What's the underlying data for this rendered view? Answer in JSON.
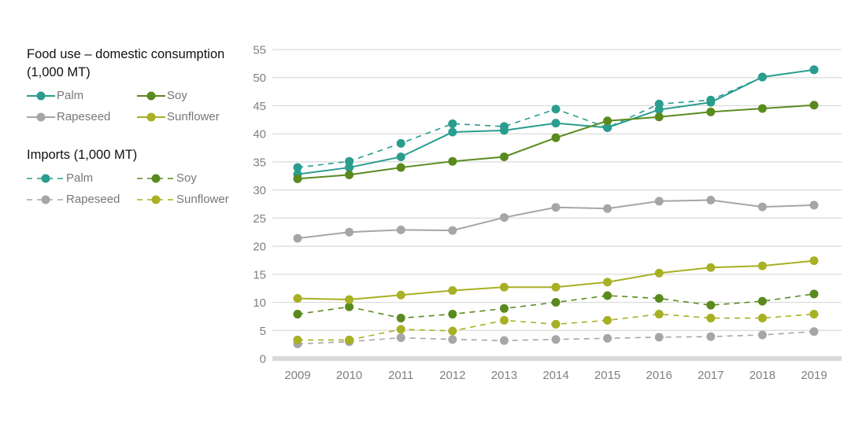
{
  "legend": {
    "food_title": "Food use – domestic consumption (1,000 MT)",
    "imports_title": "Imports (1,000 MT)",
    "entries": {
      "palm": "Palm",
      "soy": "Soy",
      "rapeseed": "Rapeseed",
      "sunflower": "Sunflower"
    }
  },
  "colors": {
    "palm": "#2a9d8f",
    "soy": "#5a8a1e",
    "rapeseed": "#a6a6a6",
    "sunflower": "#a8b023",
    "grid": "#d9d9d9",
    "axis": "#d9d9d9",
    "tick_text": "#808080"
  },
  "chart_data": {
    "type": "line",
    "x": [
      "2009",
      "2010",
      "2011",
      "2012",
      "2013",
      "2014",
      "2015",
      "2016",
      "2017",
      "2018",
      "2019"
    ],
    "ylim": [
      0,
      55
    ],
    "yticks": [
      0,
      5,
      10,
      15,
      20,
      25,
      30,
      35,
      40,
      45,
      50,
      55
    ],
    "grid": true,
    "legend_position": "left",
    "series": [
      {
        "name": "Palm",
        "group": "Food use – domestic consumption (1,000 MT)",
        "key": "palm",
        "dashed": false,
        "values": [
          32.8,
          34.0,
          35.9,
          40.3,
          40.6,
          41.9,
          41.1,
          44.3,
          45.6,
          50.1,
          51.4
        ]
      },
      {
        "name": "Soy",
        "group": "Food use – domestic consumption (1,000 MT)",
        "key": "soy",
        "dashed": false,
        "values": [
          32.0,
          32.7,
          34.0,
          35.1,
          35.9,
          39.3,
          42.3,
          43.0,
          43.9,
          44.5,
          45.1
        ]
      },
      {
        "name": "Rapeseed",
        "group": "Food use – domestic consumption (1,000 MT)",
        "key": "rapeseed",
        "dashed": false,
        "values": [
          21.4,
          22.5,
          22.9,
          22.8,
          25.1,
          26.9,
          26.7,
          28.0,
          28.2,
          27.0,
          27.3
        ]
      },
      {
        "name": "Sunflower",
        "group": "Food use – domestic consumption (1,000 MT)",
        "key": "sunflower",
        "dashed": false,
        "values": [
          10.7,
          10.5,
          11.3,
          12.1,
          12.7,
          12.7,
          13.6,
          15.2,
          16.2,
          16.5,
          17.4
        ]
      },
      {
        "name": "Palm",
        "group": "Imports (1,000 MT)",
        "key": "palm",
        "dashed": true,
        "values": [
          34.0,
          35.1,
          38.3,
          41.8,
          41.3,
          44.4,
          41.1,
          45.3,
          46.0,
          50.1,
          51.4
        ]
      },
      {
        "name": "Soy",
        "group": "Imports (1,000 MT)",
        "key": "soy",
        "dashed": true,
        "values": [
          7.9,
          9.2,
          7.2,
          7.9,
          8.9,
          10.0,
          11.2,
          10.7,
          9.5,
          10.2,
          11.5
        ]
      },
      {
        "name": "Rapeseed",
        "group": "Imports (1,000 MT)",
        "key": "rapeseed",
        "dashed": true,
        "values": [
          2.6,
          3.0,
          3.7,
          3.4,
          3.2,
          3.4,
          3.6,
          3.8,
          3.9,
          4.2,
          4.8
        ]
      },
      {
        "name": "Sunflower",
        "group": "Imports (1,000 MT)",
        "key": "sunflower",
        "dashed": true,
        "values": [
          3.3,
          3.3,
          5.2,
          4.9,
          6.8,
          6.1,
          6.8,
          7.9,
          7.2,
          7.2,
          7.9
        ]
      }
    ]
  }
}
